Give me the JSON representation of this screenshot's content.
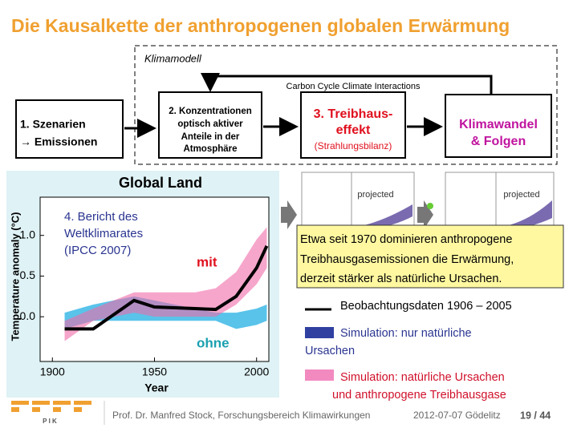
{
  "header": {
    "title": "Die Kausalkette der anthropogenen globalen Erwärmung"
  },
  "diagram": {
    "frame_label": "Klimamodell",
    "feedback_label": "Carbon Cycle Climate Interactions",
    "boxes": [
      {
        "lines": [
          "1. Szenarien",
          "→ Emissionen"
        ]
      },
      {
        "lines": [
          "2. Konzentrationen",
          "optisch aktiver",
          "Anteile in der",
          "Atmosphäre"
        ]
      },
      {
        "lines": [
          "3. Treibhaus-",
          "effekt",
          "(Strahlungsbilanz)"
        ]
      },
      {
        "lines": [
          "Klimawandel",
          "& Folgen"
        ]
      }
    ]
  },
  "chart": {
    "type": "line",
    "title": "Global Land",
    "xlabel": "Year",
    "ylabel": "Temperature anomaly (°C)",
    "xlim": [
      1894,
      2006
    ],
    "ylim": [
      -0.55,
      1.47
    ],
    "xticks": [
      1900,
      1950,
      2000
    ],
    "yticks": [
      {
        "value": 0,
        "label": "0.0"
      },
      {
        "value": 0.5,
        "label": "0.5"
      },
      {
        "value": 1,
        "label": "1.0"
      }
    ],
    "x": [
      1906,
      1920,
      1940,
      1950,
      1960,
      1970,
      1980,
      1990,
      2000,
      2005
    ],
    "series": [
      {
        "name": "Beobachtungsdaten 1906 – 2005",
        "color": "#000000",
        "values": [
          -0.15,
          -0.15,
          0.2,
          0.12,
          0.11,
          0.1,
          0.09,
          0.25,
          0.6,
          0.87
        ]
      },
      {
        "name": "ohne",
        "color": "#3cb8e6",
        "lower": [
          -0.15,
          -0.05,
          -0.05,
          -0.05,
          -0.05,
          -0.05,
          -0.05,
          -0.15,
          -0.1,
          -0.05
        ],
        "upper": [
          0.05,
          0.15,
          0.25,
          0.2,
          0.15,
          0.1,
          0.05,
          0.05,
          0.1,
          0.15
        ]
      },
      {
        "name": "mit",
        "color": "#f06aa8",
        "lower": [
          -0.3,
          -0.05,
          0.05,
          0,
          0,
          0,
          0,
          0.15,
          0.4,
          0.6
        ],
        "upper": [
          -0.05,
          0.1,
          0.3,
          0.3,
          0.3,
          0.3,
          0.35,
          0.55,
          0.95,
          1.1
        ]
      }
    ],
    "annotation": [
      "4. Bericht des",
      "Weltklimarates",
      "(IPCC 2007)"
    ]
  },
  "thumbnails": [
    "projected",
    "projected"
  ],
  "callout": [
    "Etwa seit 1970 dominieren anthropogene",
    "Treibhausgasemissionen die Erwärmung,",
    "derzeit stärker als natürliche Ursachen."
  ],
  "legend": [
    {
      "lines": [
        "Beobachtungsdaten 1906 – 2005"
      ]
    },
    {
      "lines": [
        "Simulation: nur natürliche",
        "Ursachen"
      ]
    },
    {
      "lines": [
        "Simulation: natürliche Ursachen",
        "und anthropogene Treibhausgase"
      ]
    }
  ],
  "footer": {
    "logo": "P I K",
    "author": "Prof. Dr. Manfred Stock, Forschungsbereich Klimawirkungen",
    "date": "2012-07-07 Gödelitz",
    "page": "19 / 44"
  }
}
